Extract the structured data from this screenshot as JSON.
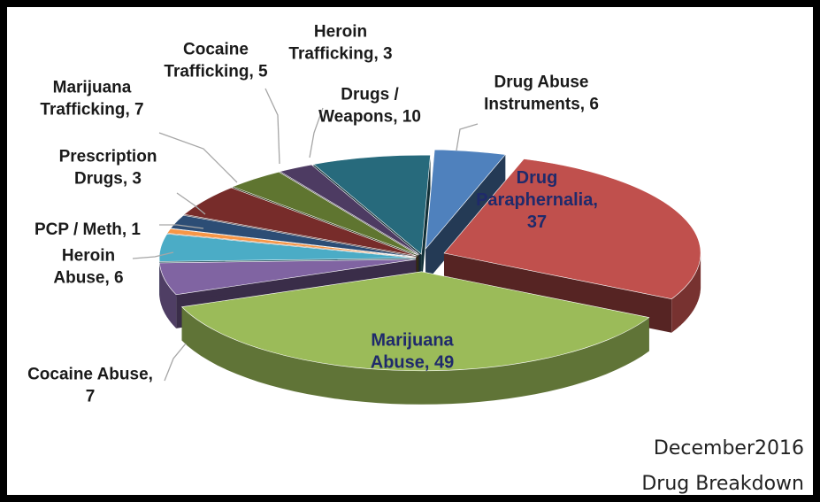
{
  "chart_data": {
    "type": "pie",
    "style": "3d-exploded",
    "title": "",
    "caption": [
      "December2016",
      "Drug Breakdown"
    ],
    "slices": [
      {
        "name": "Drug Abuse Instruments",
        "value": 6,
        "color": "#4f81bd",
        "label": [
          "Drug Abuse",
          "Instruments, 6"
        ]
      },
      {
        "name": "Drug Paraphernalia",
        "value": 37,
        "color": "#c0504d",
        "label": [
          "Drug",
          "Paraphernalia,",
          "37"
        ]
      },
      {
        "name": "Marijuana Abuse",
        "value": 49,
        "color": "#9bbb59",
        "label": [
          "Marijuana",
          "Abuse, 49"
        ]
      },
      {
        "name": "Cocaine Abuse",
        "value": 7,
        "color": "#8064a2",
        "label": [
          "Cocaine Abuse,",
          "7"
        ]
      },
      {
        "name": "Heroin Abuse",
        "value": 6,
        "color": "#4bacc6",
        "label": [
          "Heroin",
          "Abuse, 6"
        ]
      },
      {
        "name": "PCP / Meth",
        "value": 1,
        "color": "#f79646",
        "label": [
          "PCP / Meth, 1"
        ]
      },
      {
        "name": "Prescription Drugs",
        "value": 3,
        "color": "#2c4d75",
        "label": [
          "Prescription",
          "Drugs, 3"
        ]
      },
      {
        "name": "Marijuana Trafficking",
        "value": 7,
        "color": "#772c2a",
        "label": [
          "Marijuana",
          "Trafficking, 7"
        ]
      },
      {
        "name": "Cocaine Trafficking",
        "value": 5,
        "color": "#5f7530",
        "label": [
          "Cocaine",
          "Trafficking, 5"
        ]
      },
      {
        "name": "Heroin Trafficking",
        "value": 3,
        "color": "#4d3b62",
        "label": [
          "Heroin",
          "Trafficking, 3"
        ]
      },
      {
        "name": "Drugs / Weapons",
        "value": 10,
        "color": "#276a7c",
        "label": [
          "Drugs /",
          "Weapons, 10"
        ]
      }
    ]
  }
}
